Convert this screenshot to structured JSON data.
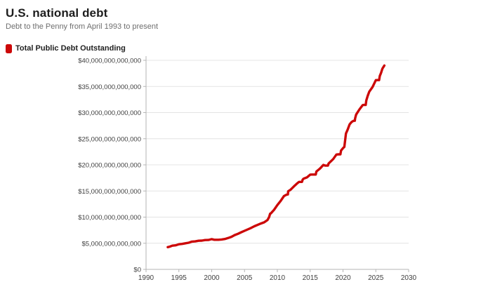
{
  "header": {
    "title": "U.S. national debt",
    "subtitle": "Debt to the Penny from April 1993 to present"
  },
  "legend": {
    "label": "Total Public Debt Outstanding",
    "swatch_color": "#cc0808"
  },
  "colors": {
    "line": "#cc0808",
    "grid": "#e4e4e4",
    "axis": "#b4b4b4",
    "tick_label": "#3f3f3f",
    "background": "#ffffff"
  },
  "chart_data": {
    "type": "line",
    "title": "U.S. national debt",
    "subtitle": "Debt to the Penny from April 1993 to present",
    "xlabel": "",
    "ylabel": "",
    "xlim": [
      1990,
      2030
    ],
    "ylim_trillions": [
      0,
      40
    ],
    "grid": "horizontal",
    "legend_position": "top-left",
    "x_ticks": [
      1990,
      1995,
      2000,
      2005,
      2010,
      2015,
      2020,
      2025,
      2030
    ],
    "x_tick_labels": [
      "1990",
      "1995",
      "2000",
      "2005",
      "2010",
      "2015",
      "2020",
      "2025",
      "2030"
    ],
    "y_ticks_trillions": [
      0,
      5,
      10,
      15,
      20,
      25,
      30,
      35,
      40
    ],
    "y_tick_labels": [
      "$0",
      "$5,000,000,000,000",
      "$10,000,000,000,000",
      "$15,000,000,000,000",
      "$20,000,000,000,000",
      "$25,000,000,000,000",
      "$30,000,000,000,000",
      "$35,000,000,000,000",
      "$40,000,000,000,000"
    ],
    "values_unit": "USD trillions",
    "series": [
      {
        "name": "Total Public Debt Outstanding",
        "color": "#cc0808",
        "x": [
          1993.3,
          1993.6,
          1994.0,
          1994.5,
          1995.0,
          1995.5,
          1996.0,
          1996.5,
          1997.0,
          1997.5,
          1998.0,
          1998.5,
          1999.0,
          1999.5,
          2000.0,
          2000.4,
          2001.0,
          2001.5,
          2002.0,
          2002.5,
          2003.0,
          2003.5,
          2004.0,
          2004.5,
          2005.0,
          2005.5,
          2006.0,
          2006.5,
          2007.0,
          2007.5,
          2008.0,
          2008.5,
          2008.75,
          2008.9,
          2009.0,
          2009.5,
          2010.0,
          2010.5,
          2011.0,
          2011.4,
          2011.6,
          2011.65,
          2012.0,
          2012.5,
          2013.0,
          2013.3,
          2013.75,
          2013.85,
          2014.0,
          2014.5,
          2015.0,
          2015.3,
          2015.85,
          2015.95,
          2016.5,
          2017.0,
          2017.3,
          2017.7,
          2017.8,
          2018.0,
          2018.5,
          2019.0,
          2019.3,
          2019.6,
          2019.7,
          2020.0,
          2020.2,
          2020.45,
          2020.7,
          2021.0,
          2021.3,
          2021.6,
          2021.8,
          2021.85,
          2022.0,
          2022.5,
          2023.0,
          2023.1,
          2023.45,
          2023.55,
          2023.75,
          2024.0,
          2024.5,
          2025.0,
          2025.1,
          2025.5,
          2025.6,
          2025.8,
          2026.0,
          2026.3
        ],
        "values": [
          4.26,
          4.35,
          4.54,
          4.6,
          4.8,
          4.87,
          4.99,
          5.1,
          5.31,
          5.35,
          5.48,
          5.5,
          5.61,
          5.63,
          5.78,
          5.66,
          5.66,
          5.72,
          5.81,
          6.0,
          6.23,
          6.56,
          6.8,
          7.1,
          7.38,
          7.65,
          7.93,
          8.25,
          8.51,
          8.78,
          9.01,
          9.45,
          10.02,
          10.66,
          10.7,
          11.4,
          12.31,
          13.1,
          14.03,
          14.3,
          14.34,
          14.94,
          15.22,
          15.85,
          16.43,
          16.74,
          16.74,
          17.16,
          17.35,
          17.6,
          18.14,
          18.15,
          18.15,
          18.72,
          19.3,
          19.98,
          19.85,
          19.85,
          20.24,
          20.49,
          21.1,
          21.97,
          22.02,
          22.02,
          22.72,
          23.2,
          23.44,
          26.0,
          26.7,
          27.75,
          28.2,
          28.43,
          28.43,
          28.91,
          29.62,
          30.6,
          31.42,
          31.46,
          31.46,
          32.33,
          33.17,
          34.0,
          34.9,
          36.22,
          36.21,
          36.21,
          37.01,
          37.6,
          38.4,
          39.0
        ]
      }
    ]
  }
}
